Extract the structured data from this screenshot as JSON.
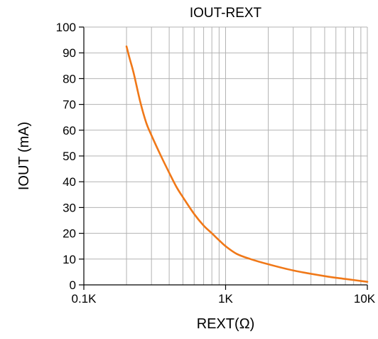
{
  "chart_data": {
    "type": "line",
    "title": "IOUT-REXT",
    "xlabel": "REXT(Ω)",
    "ylabel": "IOUT (mA)",
    "x_scale": "log",
    "xlim": [
      100,
      10000
    ],
    "ylim": [
      0,
      100
    ],
    "x_ticks": [
      {
        "value": 100,
        "label": "0.1K"
      },
      {
        "value": 1000,
        "label": "1K"
      },
      {
        "value": 10000,
        "label": "10K"
      }
    ],
    "y_ticks": [
      {
        "value": 0,
        "label": "0"
      },
      {
        "value": 10,
        "label": "10"
      },
      {
        "value": 20,
        "label": "20"
      },
      {
        "value": 30,
        "label": "30"
      },
      {
        "value": 40,
        "label": "40"
      },
      {
        "value": 50,
        "label": "50"
      },
      {
        "value": 60,
        "label": "60"
      },
      {
        "value": 70,
        "label": "70"
      },
      {
        "value": 80,
        "label": "80"
      },
      {
        "value": 90,
        "label": "90"
      },
      {
        "value": 100,
        "label": "100"
      }
    ],
    "grid": true,
    "series": [
      {
        "color": "#f07818",
        "x": [
          200,
          210,
          225,
          250,
          275,
          300,
          350,
          400,
          450,
          500,
          600,
          700,
          800,
          900,
          1000,
          1200,
          1500,
          2000,
          3000,
          5000,
          7000,
          10000
        ],
        "y": [
          92.5,
          88,
          82,
          71,
          63,
          58,
          50,
          43.5,
          38,
          34,
          27.5,
          23,
          20,
          17.3,
          15,
          12,
          10,
          8,
          5.6,
          3.4,
          2.3,
          1.2
        ]
      }
    ]
  }
}
